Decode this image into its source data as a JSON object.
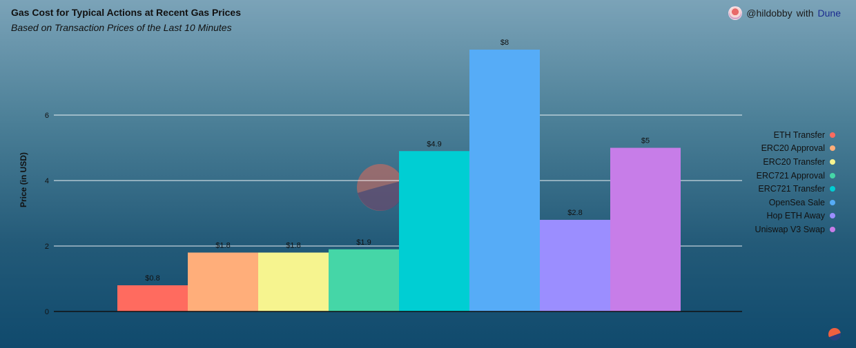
{
  "header": {
    "title": "Gas Cost for Typical Actions at Recent Gas Prices",
    "subtitle": "Based on Transaction Prices of the Last 10 Minutes",
    "author": "@hildobby",
    "with_text": "with",
    "brand": "Dune"
  },
  "watermark": "Dune",
  "chart_data": {
    "type": "bar",
    "title": "Gas Cost for Typical Actions at Recent Gas Prices",
    "subtitle": "Based on Transaction Prices of the Last 10 Minutes",
    "xlabel": "",
    "ylabel": "Price (in USD)",
    "ylim": [
      0,
      8
    ],
    "yticks": [
      0,
      2,
      4,
      6
    ],
    "grid": true,
    "legend_position": "right",
    "series": [
      {
        "name": "ETH Transfer",
        "value": 0.8,
        "label": "$0.8",
        "color": "#ff6b5f"
      },
      {
        "name": "ERC20 Approval",
        "value": 1.8,
        "label": "$1.8",
        "color": "#ffae7a"
      },
      {
        "name": "ERC20 Transfer",
        "value": 1.8,
        "label": "$1.8",
        "color": "#f6f48f"
      },
      {
        "name": "ERC721 Approval",
        "value": 1.9,
        "label": "$1.9",
        "color": "#45d6a7"
      },
      {
        "name": "ERC721 Transfer",
        "value": 4.9,
        "label": "$4.9",
        "color": "#00ced3"
      },
      {
        "name": "OpenSea Sale",
        "value": 8,
        "label": "$8",
        "color": "#56acf7"
      },
      {
        "name": "Hop ETH Away",
        "value": 2.8,
        "label": "$2.8",
        "color": "#9b8eff"
      },
      {
        "name": "Uniswap V3 Swap",
        "value": 5,
        "label": "$5",
        "color": "#c77de8"
      }
    ]
  }
}
